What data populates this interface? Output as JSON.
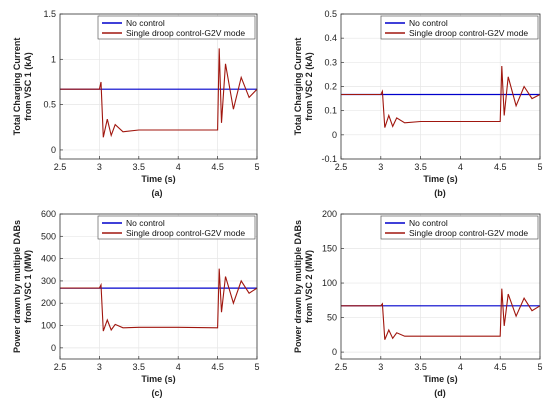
{
  "chart_data": [
    {
      "type": "line",
      "panel_label": "(a)",
      "xlabel": "Time (s)",
      "ylabel_lines": [
        "Total Charging Current",
        "from VSC 1 (kA)"
      ],
      "xlim": [
        2.5,
        5
      ],
      "ylim": [
        -0.1,
        1.5
      ],
      "xticks": [
        "2.5",
        "3",
        "3.5",
        "4",
        "4.5",
        "5"
      ],
      "yticks": [
        "0",
        "0.5",
        "1",
        "1.5"
      ],
      "grid": true,
      "legend_position": "top-right",
      "series": [
        {
          "name": "No control",
          "color": "#0000cc",
          "x": [
            2.5,
            5
          ],
          "y": [
            0.67,
            0.67
          ]
        },
        {
          "name": "Single droop control-G2V mode",
          "color": "#a0160e",
          "x": [
            2.5,
            3.0,
            3.02,
            3.05,
            3.1,
            3.15,
            3.2,
            3.3,
            3.5,
            4.0,
            4.5,
            4.52,
            4.55,
            4.6,
            4.7,
            4.8,
            4.9,
            5.0
          ],
          "y": [
            0.67,
            0.67,
            0.75,
            0.14,
            0.34,
            0.16,
            0.28,
            0.2,
            0.22,
            0.22,
            0.22,
            1.12,
            0.3,
            0.95,
            0.45,
            0.8,
            0.58,
            0.67
          ]
        }
      ]
    },
    {
      "type": "line",
      "panel_label": "(b)",
      "xlabel": "Time (s)",
      "ylabel_lines": [
        "Total Charging Current",
        "from VSC 2 (kA)"
      ],
      "xlim": [
        2.5,
        5
      ],
      "ylim": [
        -0.1,
        0.5
      ],
      "xticks": [
        "2.5",
        "3",
        "3.5",
        "4",
        "4.5",
        "5"
      ],
      "yticks": [
        "-0.1",
        "0",
        "0.1",
        "0.2",
        "0.3",
        "0.4",
        "0.5"
      ],
      "grid": true,
      "legend_position": "top-right",
      "series": [
        {
          "name": "No control",
          "color": "#0000cc",
          "x": [
            2.5,
            5
          ],
          "y": [
            0.167,
            0.167
          ]
        },
        {
          "name": "Single droop control-G2V mode",
          "color": "#a0160e",
          "x": [
            2.5,
            3.0,
            3.02,
            3.05,
            3.1,
            3.15,
            3.2,
            3.3,
            3.5,
            4.0,
            4.5,
            4.52,
            4.55,
            4.6,
            4.7,
            4.8,
            4.9,
            5.0
          ],
          "y": [
            0.167,
            0.167,
            0.18,
            0.03,
            0.08,
            0.035,
            0.07,
            0.05,
            0.055,
            0.055,
            0.055,
            0.285,
            0.08,
            0.24,
            0.12,
            0.2,
            0.15,
            0.167
          ]
        }
      ]
    },
    {
      "type": "line",
      "panel_label": "(c)",
      "xlabel": "Time (s)",
      "ylabel_lines": [
        "Power drawn by multiple DABs",
        "from VSC 1 (MW)"
      ],
      "xlim": [
        2.5,
        5
      ],
      "ylim": [
        -50,
        600
      ],
      "xticks": [
        "2.5",
        "3",
        "3.5",
        "4",
        "4.5",
        "5"
      ],
      "yticks": [
        "0",
        "100",
        "200",
        "300",
        "400",
        "500",
        "600"
      ],
      "grid": true,
      "legend_position": "top-right",
      "series": [
        {
          "name": "No control",
          "color": "#0000cc",
          "x": [
            2.5,
            5
          ],
          "y": [
            268,
            268
          ]
        },
        {
          "name": "Single droop control-G2V mode",
          "color": "#a0160e",
          "x": [
            2.5,
            3.0,
            3.02,
            3.05,
            3.1,
            3.15,
            3.2,
            3.3,
            3.5,
            4.0,
            4.5,
            4.52,
            4.55,
            4.6,
            4.7,
            4.8,
            4.9,
            5.0
          ],
          "y": [
            268,
            268,
            282,
            75,
            125,
            80,
            105,
            90,
            92,
            92,
            90,
            355,
            160,
            320,
            200,
            300,
            245,
            268
          ]
        }
      ]
    },
    {
      "type": "line",
      "panel_label": "(d)",
      "xlabel": "Time (s)",
      "ylabel_lines": [
        "Power drawn by multiple DABs",
        "from VSC 2 (MW)"
      ],
      "xlim": [
        2.5,
        5
      ],
      "ylim": [
        -10,
        200
      ],
      "xticks": [
        "2.5",
        "3",
        "3.5",
        "4",
        "4.5",
        "5"
      ],
      "yticks": [
        "0",
        "50",
        "100",
        "150",
        "200"
      ],
      "grid": true,
      "legend_position": "top-right",
      "series": [
        {
          "name": "No control",
          "color": "#0000cc",
          "x": [
            2.5,
            5
          ],
          "y": [
            67,
            67
          ]
        },
        {
          "name": "Single droop control-G2V mode",
          "color": "#a0160e",
          "x": [
            2.5,
            3.0,
            3.02,
            3.05,
            3.1,
            3.15,
            3.2,
            3.3,
            3.5,
            4.0,
            4.5,
            4.52,
            4.55,
            4.6,
            4.7,
            4.8,
            4.9,
            5.0
          ],
          "y": [
            67,
            67,
            70,
            18,
            32,
            20,
            28,
            23,
            23,
            23,
            23,
            92,
            38,
            84,
            52,
            78,
            60,
            67
          ]
        }
      ]
    }
  ]
}
